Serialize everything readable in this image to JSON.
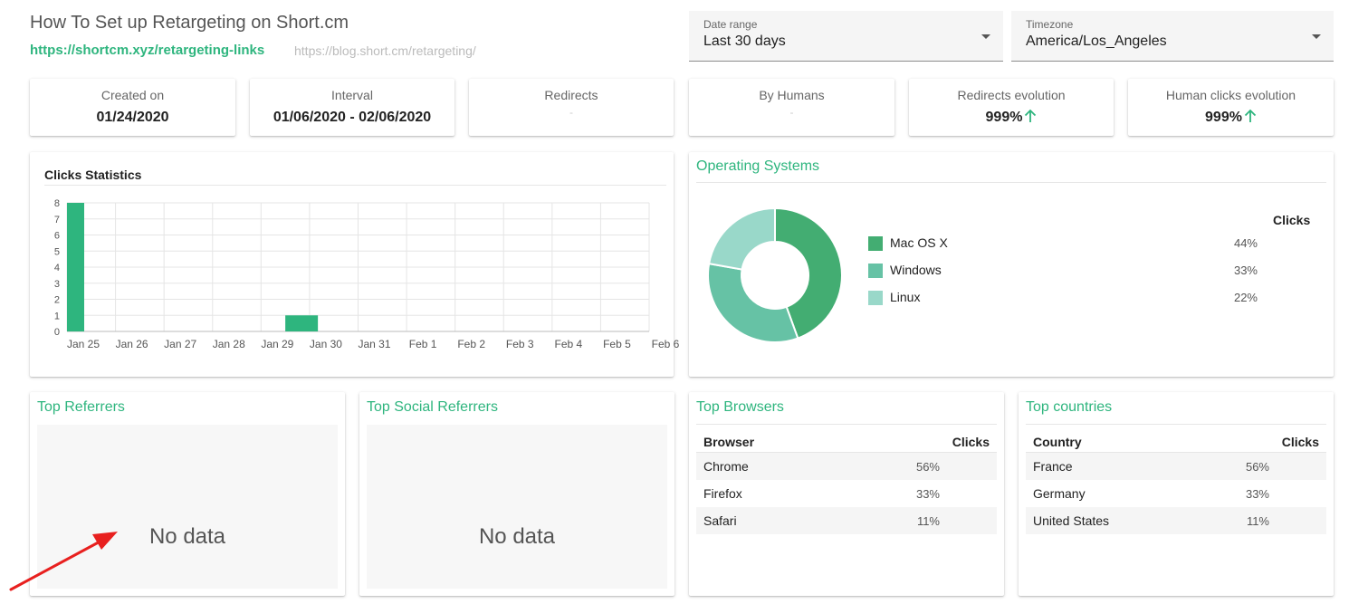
{
  "header": {
    "title": "How To Set up Retargeting on Short.cm",
    "short_link": "https://shortcm.xyz/retargeting-links",
    "long_link": "https://blog.short.cm/retargeting/"
  },
  "filters": {
    "date_range": {
      "label": "Date range",
      "value": "Last 30 days"
    },
    "timezone": {
      "label": "Timezone",
      "value": "America/Los_Angeles"
    }
  },
  "stats": {
    "created_on": {
      "label": "Created on",
      "value": "01/24/2020"
    },
    "interval": {
      "label": "Interval",
      "value": "01/06/2020 - 02/06/2020"
    },
    "redirects": {
      "label": "Redirects",
      "value": "-"
    },
    "by_humans": {
      "label": "By Humans",
      "value": "-"
    },
    "redirects_evolution": {
      "label": "Redirects evolution",
      "value": "999%"
    },
    "human_clicks_evolution": {
      "label": "Human clicks evolution",
      "value": "999%"
    }
  },
  "colors": {
    "accent": "#2eb57e",
    "mac": "#43ad72",
    "windows": "#66c2a5",
    "linux": "#99d8c9"
  },
  "chart_data": [
    {
      "type": "bar",
      "title": "Clicks Statistics",
      "categories": [
        "Jan 25",
        "Jan 26",
        "Jan 27",
        "Jan 28",
        "Jan 29",
        "Jan 30",
        "Jan 31",
        "Feb 1",
        "Feb 2",
        "Feb 3",
        "Feb 4",
        "Feb 5",
        "Feb 6"
      ],
      "y_ticks": [
        "0",
        "1",
        "2",
        "3",
        "4",
        "5",
        "6",
        "7",
        "8"
      ],
      "bars": [
        {
          "date": "Jan 25",
          "value": 8
        },
        {
          "date": "Jan 29.5",
          "value": 1
        }
      ],
      "ylim": [
        0,
        8
      ],
      "grid": true,
      "xlabel": "",
      "ylabel": ""
    },
    {
      "type": "pie",
      "title": "Operating Systems",
      "labels": [
        "Mac OS X",
        "Windows",
        "Linux"
      ],
      "values": [
        44,
        33,
        22
      ],
      "legend_header": "Clicks",
      "legend_values": [
        "44%",
        "33%",
        "22%"
      ]
    }
  ],
  "referrers": {
    "title": "Top Referrers",
    "empty": "No data"
  },
  "social_referrers": {
    "title": "Top Social Referrers",
    "empty": "No data"
  },
  "browsers": {
    "title": "Top Browsers",
    "col1": "Browser",
    "col2": "Clicks",
    "rows": [
      {
        "name": "Chrome",
        "pct": "56%"
      },
      {
        "name": "Firefox",
        "pct": "33%"
      },
      {
        "name": "Safari",
        "pct": "11%"
      }
    ]
  },
  "countries": {
    "title": "Top countries",
    "col1": "Country",
    "col2": "Clicks",
    "rows": [
      {
        "name": "France",
        "pct": "56%"
      },
      {
        "name": "Germany",
        "pct": "33%"
      },
      {
        "name": "United States",
        "pct": "11%"
      }
    ]
  }
}
